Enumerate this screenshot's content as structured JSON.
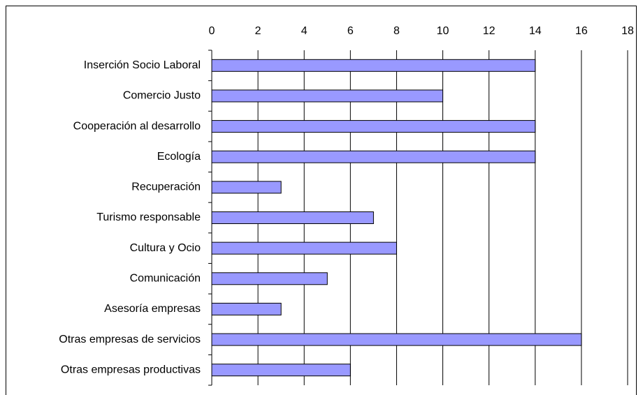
{
  "chart_data": {
    "type": "bar",
    "orientation": "horizontal",
    "categories": [
      "Inserción Socio Laboral",
      "Comercio Justo",
      "Cooperación al desarrollo",
      "Ecología",
      "Recuperación",
      "Turismo responsable",
      "Cultura y Ocio",
      "Comunicación",
      "Asesoría empresas",
      "Otras empresas de servicios",
      "Otras empresas productivas"
    ],
    "values": [
      14,
      10,
      14,
      14,
      3,
      7,
      8,
      5,
      3,
      16,
      6
    ],
    "color": "#9999ff",
    "xlim": [
      0,
      18
    ],
    "xticks": [
      0,
      2,
      4,
      6,
      8,
      10,
      12,
      14,
      16,
      18
    ],
    "grid": true
  }
}
